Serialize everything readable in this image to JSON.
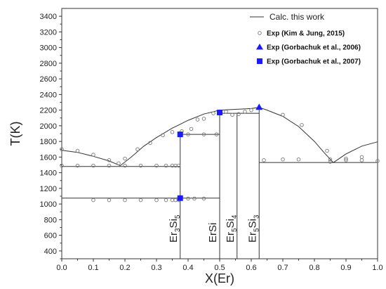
{
  "chart_data": {
    "type": "scatter",
    "xlabel": "X(Er)",
    "ylabel": "T(K)",
    "xlim": [
      0.0,
      1.0
    ],
    "ylim": [
      300,
      3500
    ],
    "x_ticks": [
      "0.0",
      "0.1",
      "0.2",
      "0.3",
      "0.4",
      "0.5",
      "0.6",
      "0.7",
      "0.8",
      "0.9",
      "1.0"
    ],
    "y_ticks": [
      "400",
      "600",
      "800",
      "1000",
      "1200",
      "1400",
      "1600",
      "1800",
      "2000",
      "2200",
      "2400",
      "2600",
      "2800",
      "3000",
      "3200",
      "3400"
    ],
    "legend_position": "top-right",
    "legend": [
      {
        "label": "Calc. this work",
        "marker": "line"
      },
      {
        "label": "Exp (Kim & Jung, 2015)",
        "marker": "open-circle"
      },
      {
        "label": "Exp (Gorbachuk et al., 2006)",
        "marker": "triangle"
      },
      {
        "label": "Exp (Gorbachuk et al., 2007)",
        "marker": "square"
      }
    ],
    "calc_liquidus": {
      "name": "Calc. this work",
      "x": [
        0.0,
        0.05,
        0.1,
        0.15,
        0.185,
        0.22,
        0.26,
        0.3,
        0.35,
        0.4,
        0.45,
        0.5,
        0.55,
        0.6,
        0.625,
        0.65,
        0.7,
        0.75,
        0.8,
        0.83,
        0.86,
        0.9,
        0.95,
        1.0
      ],
      "y": [
        1687,
        1660,
        1610,
        1550,
        1490,
        1600,
        1740,
        1850,
        1970,
        2070,
        2150,
        2200,
        2210,
        2220,
        2235,
        2200,
        2120,
        1990,
        1800,
        1660,
        1530,
        1640,
        1740,
        1795
      ]
    },
    "calc_lines": {
      "horizontal": [
        {
          "x": [
            0.0,
            0.375
          ],
          "y": 1480
        },
        {
          "x": [
            0.0,
            0.5
          ],
          "y": 1075
        },
        {
          "x": [
            0.375,
            0.5
          ],
          "y": 1890
        },
        {
          "x": [
            0.5,
            0.625
          ],
          "y": 2160
        },
        {
          "x": [
            0.625,
            1.0
          ],
          "y": 1530
        }
      ],
      "vertical": [
        {
          "x": 0.375,
          "y": [
            300,
            1890
          ]
        },
        {
          "x": 0.5,
          "y": [
            300,
            2170
          ]
        },
        {
          "x": 0.555,
          "y": [
            300,
            2165
          ]
        },
        {
          "x": 0.625,
          "y": [
            300,
            2235
          ]
        }
      ]
    },
    "series": [
      {
        "name": "Exp (Kim & Jung, 2015)",
        "marker": "open-circle",
        "x": [
          0.0,
          0.05,
          0.1,
          0.15,
          0.18,
          0.0,
          0.05,
          0.1,
          0.15,
          0.2,
          0.25,
          0.3,
          0.33,
          0.35,
          0.36,
          0.37,
          0.1,
          0.15,
          0.2,
          0.25,
          0.3,
          0.33,
          0.35,
          0.36,
          0.37,
          0.4,
          0.42,
          0.45,
          0.2,
          0.24,
          0.28,
          0.32,
          0.35,
          0.38,
          0.41,
          0.43,
          0.45,
          0.48,
          0.4,
          0.45,
          0.49,
          0.52,
          0.54,
          0.56,
          0.58,
          0.6,
          0.7,
          0.76,
          0.84,
          0.85,
          0.9,
          0.95,
          1.0,
          0.64,
          0.7,
          0.75,
          0.85,
          0.9,
          0.95
        ],
        "y": [
          1700,
          1680,
          1630,
          1560,
          1520,
          1490,
          1490,
          1490,
          1490,
          1490,
          1490,
          1490,
          1490,
          1490,
          1490,
          1490,
          1050,
          1050,
          1050,
          1050,
          1050,
          1050,
          1050,
          1050,
          1050,
          1070,
          1070,
          1070,
          1580,
          1700,
          1780,
          1880,
          1920,
          1930,
          1960,
          2080,
          2090,
          2160,
          1890,
          1890,
          1890,
          2180,
          2140,
          2150,
          2180,
          2200,
          2140,
          2010,
          1680,
          1540,
          1580,
          1600,
          1550,
          1560,
          1570,
          1570,
          1570,
          1560,
          1560
        ]
      },
      {
        "name": "Exp (Gorbachuk et al., 2006)",
        "marker": "triangle",
        "x": [
          0.625
        ],
        "y": [
          2235
        ]
      },
      {
        "name": "Exp (Gorbachuk et al., 2007)",
        "marker": "square",
        "x": [
          0.375,
          0.375,
          0.5
        ],
        "y": [
          1890,
          1075,
          2170
        ]
      }
    ],
    "phase_labels": [
      {
        "text_base": "Er",
        "sub1": "3",
        "mid": "Si",
        "sub2": "5",
        "x": 0.375
      },
      {
        "text_base": "ErSi",
        "sub1": "",
        "mid": "",
        "sub2": "",
        "x": 0.5
      },
      {
        "text_base": "Er",
        "sub1": "5",
        "mid": "Si",
        "sub2": "4",
        "x": 0.555
      },
      {
        "text_base": "Er",
        "sub1": "5",
        "mid": "Si",
        "sub2": "3",
        "x": 0.625
      }
    ]
  },
  "colors": {
    "line": "#333333",
    "circle": "#777777",
    "marker_blue": "#1a1aff",
    "axis": "#333333"
  }
}
